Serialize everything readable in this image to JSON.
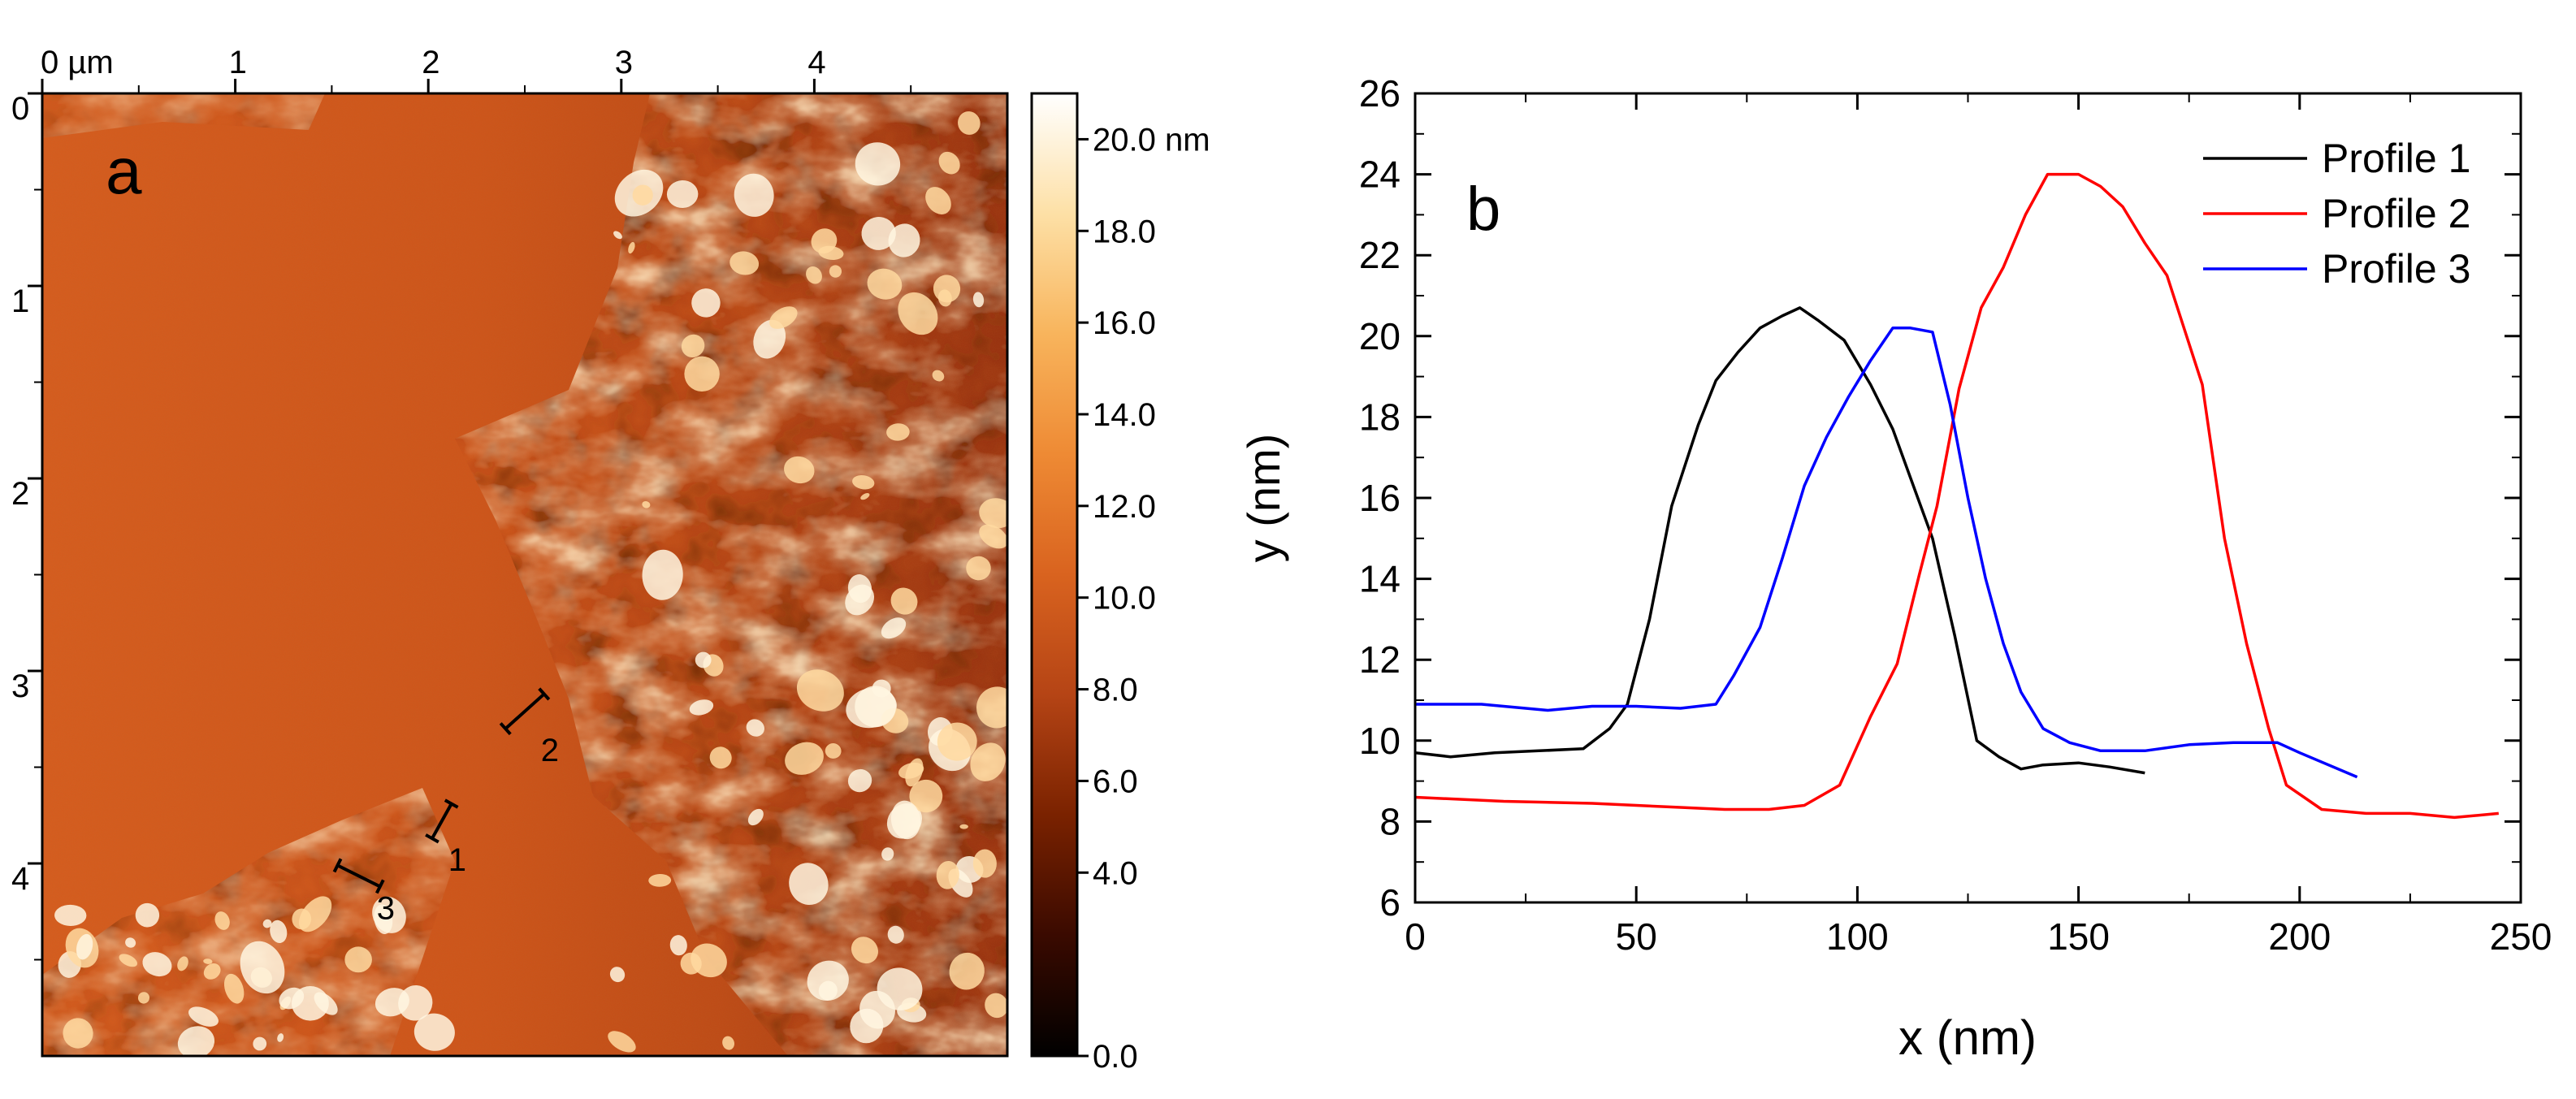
{
  "afm": {
    "panel_letter": "a",
    "x_ticks": [
      {
        "value": 0,
        "label": "0 µm"
      },
      {
        "value": 1,
        "label": "1"
      },
      {
        "value": 2,
        "label": "2"
      },
      {
        "value": 3,
        "label": "3"
      },
      {
        "value": 4,
        "label": "4"
      }
    ],
    "y_ticks": [
      {
        "value": 0,
        "label": "0"
      },
      {
        "value": 1,
        "label": "1"
      },
      {
        "value": 2,
        "label": "2"
      },
      {
        "value": 3,
        "label": "3"
      },
      {
        "value": 4,
        "label": "4"
      }
    ],
    "scan_size_um": 5.0,
    "colorbar": {
      "range": [
        0,
        21
      ],
      "ticks": [
        {
          "value": 20,
          "label": "20.0 nm"
        },
        {
          "value": 18,
          "label": "18.0"
        },
        {
          "value": 16,
          "label": "16.0"
        },
        {
          "value": 14,
          "label": "14.0"
        },
        {
          "value": 12,
          "label": "12.0"
        },
        {
          "value": 10,
          "label": "10.0"
        },
        {
          "value": 8,
          "label": "8.0"
        },
        {
          "value": 6,
          "label": "6.0"
        },
        {
          "value": 4,
          "label": "4.0"
        },
        {
          "value": 0,
          "label": "0.0"
        }
      ],
      "colors": [
        "#000000",
        "#3a0a00",
        "#7a2200",
        "#b54415",
        "#d9631f",
        "#ee8a34",
        "#f8b45c",
        "#fde0a6",
        "#ffffff"
      ]
    },
    "profile_markers": [
      {
        "label": "1",
        "x1": 2.02,
        "y1": 3.87,
        "x2": 2.12,
        "y2": 3.69
      },
      {
        "label": "2",
        "x1": 2.4,
        "y1": 3.3,
        "x2": 2.6,
        "y2": 3.12
      },
      {
        "label": "3",
        "x1": 1.53,
        "y1": 4.01,
        "x2": 1.75,
        "y2": 4.12
      }
    ]
  },
  "chart_data": {
    "type": "line",
    "panel_letter": "b",
    "xlabel": "x (nm)",
    "ylabel": "y (nm)",
    "xlim": [
      0,
      250
    ],
    "ylim": [
      6,
      26
    ],
    "x_ticks": [
      0,
      50,
      100,
      150,
      200,
      250
    ],
    "y_ticks": [
      6,
      8,
      10,
      12,
      14,
      16,
      18,
      20,
      22,
      24,
      26
    ],
    "legend_position": "top-right",
    "series": [
      {
        "name": "Profile 1",
        "color": "#000000",
        "points": [
          [
            0,
            9.7
          ],
          [
            8,
            9.6
          ],
          [
            18,
            9.7
          ],
          [
            28,
            9.75
          ],
          [
            38,
            9.8
          ],
          [
            44,
            10.3
          ],
          [
            48,
            10.9
          ],
          [
            53,
            13.0
          ],
          [
            58,
            15.8
          ],
          [
            64,
            17.8
          ],
          [
            68,
            18.9
          ],
          [
            73,
            19.6
          ],
          [
            78,
            20.2
          ],
          [
            83,
            20.5
          ],
          [
            87,
            20.7
          ],
          [
            91,
            20.4
          ],
          [
            97,
            19.9
          ],
          [
            103,
            18.8
          ],
          [
            108,
            17.7
          ],
          [
            112,
            16.5
          ],
          [
            117,
            15.0
          ],
          [
            122,
            12.6
          ],
          [
            127,
            10.0
          ],
          [
            132,
            9.6
          ],
          [
            137,
            9.3
          ],
          [
            142,
            9.4
          ],
          [
            150,
            9.45
          ],
          [
            157,
            9.35
          ],
          [
            165,
            9.2
          ]
        ]
      },
      {
        "name": "Profile 2",
        "color": "#ff0000",
        "points": [
          [
            0,
            8.6
          ],
          [
            20,
            8.5
          ],
          [
            40,
            8.45
          ],
          [
            50,
            8.4
          ],
          [
            60,
            8.35
          ],
          [
            70,
            8.3
          ],
          [
            80,
            8.3
          ],
          [
            88,
            8.4
          ],
          [
            96,
            8.9
          ],
          [
            103,
            10.6
          ],
          [
            109,
            11.9
          ],
          [
            114,
            14.1
          ],
          [
            118,
            15.8
          ],
          [
            123,
            18.7
          ],
          [
            128,
            20.7
          ],
          [
            133,
            21.7
          ],
          [
            138,
            23.0
          ],
          [
            143,
            24.0
          ],
          [
            150,
            24.0
          ],
          [
            155,
            23.7
          ],
          [
            160,
            23.2
          ],
          [
            165,
            22.3
          ],
          [
            170,
            21.5
          ],
          [
            178,
            18.8
          ],
          [
            183,
            15.0
          ],
          [
            188,
            12.4
          ],
          [
            193,
            10.3
          ],
          [
            197,
            8.9
          ],
          [
            205,
            8.3
          ],
          [
            215,
            8.2
          ],
          [
            225,
            8.2
          ],
          [
            235,
            8.1
          ],
          [
            245,
            8.2
          ]
        ]
      },
      {
        "name": "Profile 3",
        "color": "#0000ff",
        "points": [
          [
            0,
            10.9
          ],
          [
            15,
            10.9
          ],
          [
            30,
            10.75
          ],
          [
            40,
            10.85
          ],
          [
            50,
            10.85
          ],
          [
            60,
            10.8
          ],
          [
            68,
            10.9
          ],
          [
            72,
            11.6
          ],
          [
            78,
            12.8
          ],
          [
            83,
            14.5
          ],
          [
            88,
            16.3
          ],
          [
            93,
            17.5
          ],
          [
            98,
            18.5
          ],
          [
            103,
            19.4
          ],
          [
            108,
            20.2
          ],
          [
            112,
            20.2
          ],
          [
            117,
            20.1
          ],
          [
            121,
            18.3
          ],
          [
            125,
            16.0
          ],
          [
            129,
            14.0
          ],
          [
            133,
            12.4
          ],
          [
            137,
            11.2
          ],
          [
            142,
            10.3
          ],
          [
            148,
            9.95
          ],
          [
            155,
            9.75
          ],
          [
            165,
            9.75
          ],
          [
            175,
            9.9
          ],
          [
            185,
            9.95
          ],
          [
            195,
            9.95
          ],
          [
            200,
            9.7
          ],
          [
            213,
            9.1
          ]
        ]
      }
    ]
  }
}
